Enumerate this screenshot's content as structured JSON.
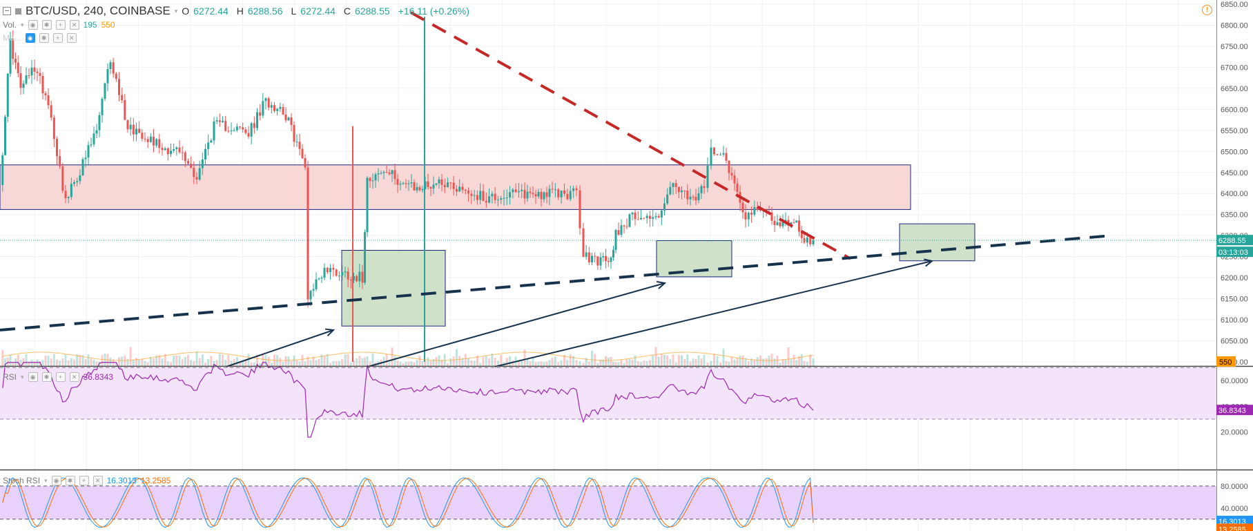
{
  "header": {
    "symbol": "BTC/USD, 240, COINBASE",
    "o_label": "O",
    "o_value": "6272.44",
    "h_label": "H",
    "h_value": "6288.56",
    "l_label": "L",
    "l_value": "6272.44",
    "c_label": "C",
    "c_value": "6288.55",
    "change": "+16.11 (+0.26%)",
    "icons": [
      "minimize-icon",
      "square-icon",
      "caret-down-icon",
      "warning-icon"
    ]
  },
  "volume_legend": {
    "label": "Vol.",
    "value1": "195",
    "value2": "550",
    "value1_color": "#26a69a",
    "value2_color": "#ff9800"
  },
  "ma_legend": {
    "label": "Ma..."
  },
  "rsi_legend": {
    "label": "RSI",
    "value": "36.8343",
    "color": "#9c27b0"
  },
  "stoch_legend": {
    "label": "Stoch RSI",
    "k_value": "16.3013",
    "d_value": "13.2585",
    "k_color": "#2196f3",
    "d_color": "#ff6d00"
  },
  "price_axis": {
    "ticks": [
      "6850.00",
      "6800.00",
      "6750.00",
      "6700.00",
      "6650.00",
      "6600.00",
      "6550.00",
      "6500.00",
      "6450.00",
      "6400.00",
      "6350.00",
      "6300.00",
      "6250.00",
      "6200.00",
      "6150.00",
      "6100.00",
      "6050.00",
      "6000.00"
    ],
    "last_price": "6288.55",
    "countdown": "03:13:03",
    "volume_badge": "550"
  },
  "rsi_axis": {
    "ticks": [
      "60.0000",
      "40.0000",
      "20.0000"
    ],
    "badge": "36.8343"
  },
  "stoch_axis": {
    "ticks": [
      "80.0000",
      "40.0000"
    ],
    "badge_k": "16.3013",
    "badge_d": "13.2585"
  },
  "colors": {
    "up": "#26a69a",
    "down": "#ef5350",
    "zone_fill": "#f8d7d7",
    "zone_border": "#1a237e",
    "box_fill": "#c8dcc0",
    "trend_red": "#c62828",
    "trend_navy": "#17324d",
    "rsi_line": "#9c27b0",
    "rsi_band": "#f3e3fb",
    "stoch_band": "#e8d2fb",
    "stoch_k": "#2196f3",
    "stoch_d": "#ff6d00",
    "last_price": "#26a69a"
  },
  "chart_data": {
    "type": "candlestick",
    "symbol": "BTC/USD",
    "interval": "240",
    "exchange": "COINBASE",
    "ylim": [
      6000,
      6860
    ],
    "last_close": 6288.55,
    "price_path_approx": [
      {
        "x": 0,
        "close": 6420
      },
      {
        "x": 15,
        "close": 6760
      },
      {
        "x": 30,
        "close": 6650
      },
      {
        "x": 50,
        "close": 6700
      },
      {
        "x": 70,
        "close": 6620
      },
      {
        "x": 95,
        "close": 6380
      },
      {
        "x": 120,
        "close": 6470
      },
      {
        "x": 140,
        "close": 6550
      },
      {
        "x": 160,
        "close": 6720
      },
      {
        "x": 185,
        "close": 6560
      },
      {
        "x": 210,
        "close": 6540
      },
      {
        "x": 235,
        "close": 6510
      },
      {
        "x": 260,
        "close": 6500
      },
      {
        "x": 285,
        "close": 6440
      },
      {
        "x": 310,
        "close": 6560
      },
      {
        "x": 335,
        "close": 6560
      },
      {
        "x": 360,
        "close": 6540
      },
      {
        "x": 385,
        "close": 6620
      },
      {
        "x": 410,
        "close": 6600
      },
      {
        "x": 430,
        "close": 6520
      },
      {
        "x": 442,
        "close": 6460
      },
      {
        "x": 446,
        "close": 6160
      },
      {
        "x": 470,
        "close": 6220
      },
      {
        "x": 500,
        "close": 6210
      },
      {
        "x": 525,
        "close": 6200
      },
      {
        "x": 532,
        "close": 6440
      },
      {
        "x": 560,
        "close": 6450
      },
      {
        "x": 600,
        "close": 6410
      },
      {
        "x": 640,
        "close": 6430
      },
      {
        "x": 700,
        "close": 6390
      },
      {
        "x": 760,
        "close": 6400
      },
      {
        "x": 800,
        "close": 6400
      },
      {
        "x": 835,
        "close": 6400
      },
      {
        "x": 845,
        "close": 6250
      },
      {
        "x": 870,
        "close": 6240
      },
      {
        "x": 885,
        "close": 6240
      },
      {
        "x": 892,
        "close": 6310
      },
      {
        "x": 920,
        "close": 6350
      },
      {
        "x": 950,
        "close": 6340
      },
      {
        "x": 975,
        "close": 6420
      },
      {
        "x": 1000,
        "close": 6380
      },
      {
        "x": 1020,
        "close": 6410
      },
      {
        "x": 1030,
        "close": 6510
      },
      {
        "x": 1048,
        "close": 6500
      },
      {
        "x": 1060,
        "close": 6440
      },
      {
        "x": 1080,
        "close": 6350
      },
      {
        "x": 1110,
        "close": 6360
      },
      {
        "x": 1130,
        "close": 6320
      },
      {
        "x": 1150,
        "close": 6340
      },
      {
        "x": 1165,
        "close": 6290
      },
      {
        "x": 1178,
        "close": 6288.55
      }
    ],
    "annotations": {
      "resistance_zone": {
        "from_price": 6362,
        "to_price": 6468
      },
      "support_boxes": [
        {
          "from_price": 6085,
          "to_price": 6265
        },
        {
          "from_price": 6202,
          "to_price": 6288
        },
        {
          "from_price": 6240,
          "to_price": 6328
        }
      ]
    },
    "rsi": {
      "ylim": [
        13,
        75
      ],
      "upper": 70,
      "lower": 30,
      "last": 36.8343
    },
    "stoch_rsi": {
      "ylim": [
        0,
        100
      ],
      "upper": 80,
      "lower": 20,
      "k_last": 16.3013,
      "d_last": 13.2585
    }
  }
}
